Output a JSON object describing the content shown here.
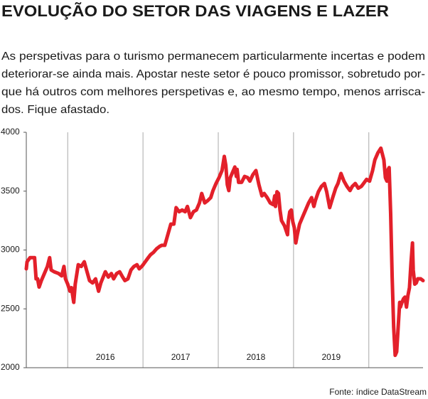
{
  "chart_data": {
    "type": "line",
    "title": "EVOLUÇÃO DO SETOR DAS VIAGENS E LAZER",
    "subtitle": [
      "As perspetivas para o turismo permanecem particularmente incertas e podem",
      "deteriorar-se ainda mais. Apostar neste setor é pouco promissor, sobretudo por-",
      "que há outros com melhores perspetivas e, ao mesmo tempo, menos arrisca-",
      "dos. Fique afastado."
    ],
    "source": "Fonte: índice DataStream",
    "x": [
      2015.45,
      2015.46,
      2015.5,
      2015.56,
      2015.58,
      2015.6,
      2015.62,
      2015.65,
      2015.69,
      2015.73,
      2015.76,
      2015.78,
      2015.82,
      2015.88,
      2015.92,
      2015.95,
      2015.97,
      2016.0,
      2016.03,
      2016.05,
      2016.08,
      2016.1,
      2016.14,
      2016.18,
      2016.22,
      2016.25,
      2016.29,
      2016.33,
      2016.37,
      2016.41,
      2016.44,
      2016.5,
      2016.54,
      2016.58,
      2016.61,
      2016.65,
      2016.69,
      2016.73,
      2016.76,
      2016.8,
      2016.84,
      2016.88,
      2016.92,
      2016.95,
      2016.99,
      2017.03,
      2017.07,
      2017.1,
      2017.14,
      2017.18,
      2017.22,
      2017.25,
      2017.29,
      2017.33,
      2017.37,
      2017.41,
      2017.44,
      2017.48,
      2017.52,
      2017.56,
      2017.59,
      2017.63,
      2017.67,
      2017.71,
      2017.75,
      2017.78,
      2017.82,
      2017.86,
      2017.9,
      2017.93,
      2017.97,
      2018.01,
      2018.05,
      2018.08,
      2018.1,
      2018.12,
      2018.14,
      2018.16,
      2018.18,
      2018.22,
      2018.24,
      2018.25,
      2018.27,
      2018.31,
      2018.35,
      2018.39,
      2018.42,
      2018.46,
      2018.5,
      2018.54,
      2018.58,
      2018.61,
      2018.65,
      2018.69,
      2018.73,
      2018.75,
      2018.76,
      2018.78,
      2018.8,
      2018.82,
      2018.84,
      2018.88,
      2018.92,
      2018.93,
      2018.95,
      2018.97,
      2018.99,
      2019.01,
      2019.03,
      2019.05,
      2019.08,
      2019.12,
      2019.16,
      2019.2,
      2019.24,
      2019.27,
      2019.29,
      2019.33,
      2019.37,
      2019.41,
      2019.44,
      2019.48,
      2019.52,
      2019.56,
      2019.59,
      2019.63,
      2019.67,
      2019.71,
      2019.75,
      2019.78,
      2019.82,
      2019.86,
      2019.9,
      2019.93,
      2019.97,
      2020.01,
      2020.05,
      2020.08,
      2020.12,
      2020.16,
      2020.2,
      2020.22,
      2020.24,
      2020.25,
      2020.27,
      2020.29,
      2020.31,
      2020.33,
      2020.35,
      2020.37,
      2020.39,
      2020.41,
      2020.42,
      2020.44,
      2020.46,
      2020.48,
      2020.5,
      2020.52,
      2020.54,
      2020.56,
      2020.58,
      2020.59,
      2020.61,
      2020.63,
      2020.65,
      2020.69,
      2020.72
    ],
    "series": [
      {
        "color": "#e3202a",
        "values": [
          2840,
          2900,
          2935,
          2935,
          2755,
          2755,
          2685,
          2740,
          2800,
          2860,
          2935,
          2830,
          2815,
          2800,
          2780,
          2860,
          2755,
          2710,
          2650,
          2680,
          2555,
          2710,
          2875,
          2860,
          2900,
          2830,
          2740,
          2720,
          2755,
          2650,
          2720,
          2815,
          2770,
          2800,
          2755,
          2800,
          2815,
          2770,
          2740,
          2755,
          2830,
          2860,
          2875,
          2840,
          2865,
          2900,
          2935,
          2960,
          2980,
          3010,
          3030,
          3040,
          3040,
          3130,
          3220,
          3220,
          3360,
          3325,
          3340,
          3325,
          3370,
          3275,
          3325,
          3340,
          3400,
          3480,
          3400,
          3420,
          3445,
          3505,
          3565,
          3615,
          3675,
          3795,
          3720,
          3555,
          3505,
          3615,
          3645,
          3705,
          3625,
          3685,
          3575,
          3575,
          3625,
          3615,
          3585,
          3640,
          3675,
          3555,
          3460,
          3480,
          3445,
          3400,
          3385,
          3460,
          3370,
          3495,
          3480,
          3340,
          3250,
          3205,
          3130,
          3240,
          3325,
          3340,
          3240,
          3190,
          3060,
          3130,
          3220,
          3280,
          3340,
          3400,
          3445,
          3370,
          3420,
          3495,
          3540,
          3565,
          3495,
          3360,
          3445,
          3525,
          3565,
          3650,
          3585,
          3540,
          3505,
          3540,
          3565,
          3525,
          3540,
          3565,
          3600,
          3585,
          3675,
          3765,
          3825,
          3865,
          3765,
          3615,
          3585,
          3675,
          3700,
          3310,
          2770,
          2345,
          2105,
          2135,
          2345,
          2555,
          2515,
          2555,
          2585,
          2600,
          2515,
          2615,
          2680,
          2890,
          3060,
          2830,
          2710,
          2720,
          2755,
          2755,
          2740
        ]
      }
    ],
    "xlim": [
      2015.45,
      2020.72
    ],
    "xgrid": [
      2016,
      2017,
      2018,
      2019,
      2020
    ],
    "xticks": [
      {
        "value": 2016.5,
        "label": "2016"
      },
      {
        "value": 2017.5,
        "label": "2017"
      },
      {
        "value": 2018.5,
        "label": "2018"
      },
      {
        "value": 2019.5,
        "label": "2019"
      }
    ],
    "ylim": [
      2000,
      4000
    ],
    "yticks": [
      2000,
      2500,
      3000,
      3500,
      4000
    ]
  }
}
